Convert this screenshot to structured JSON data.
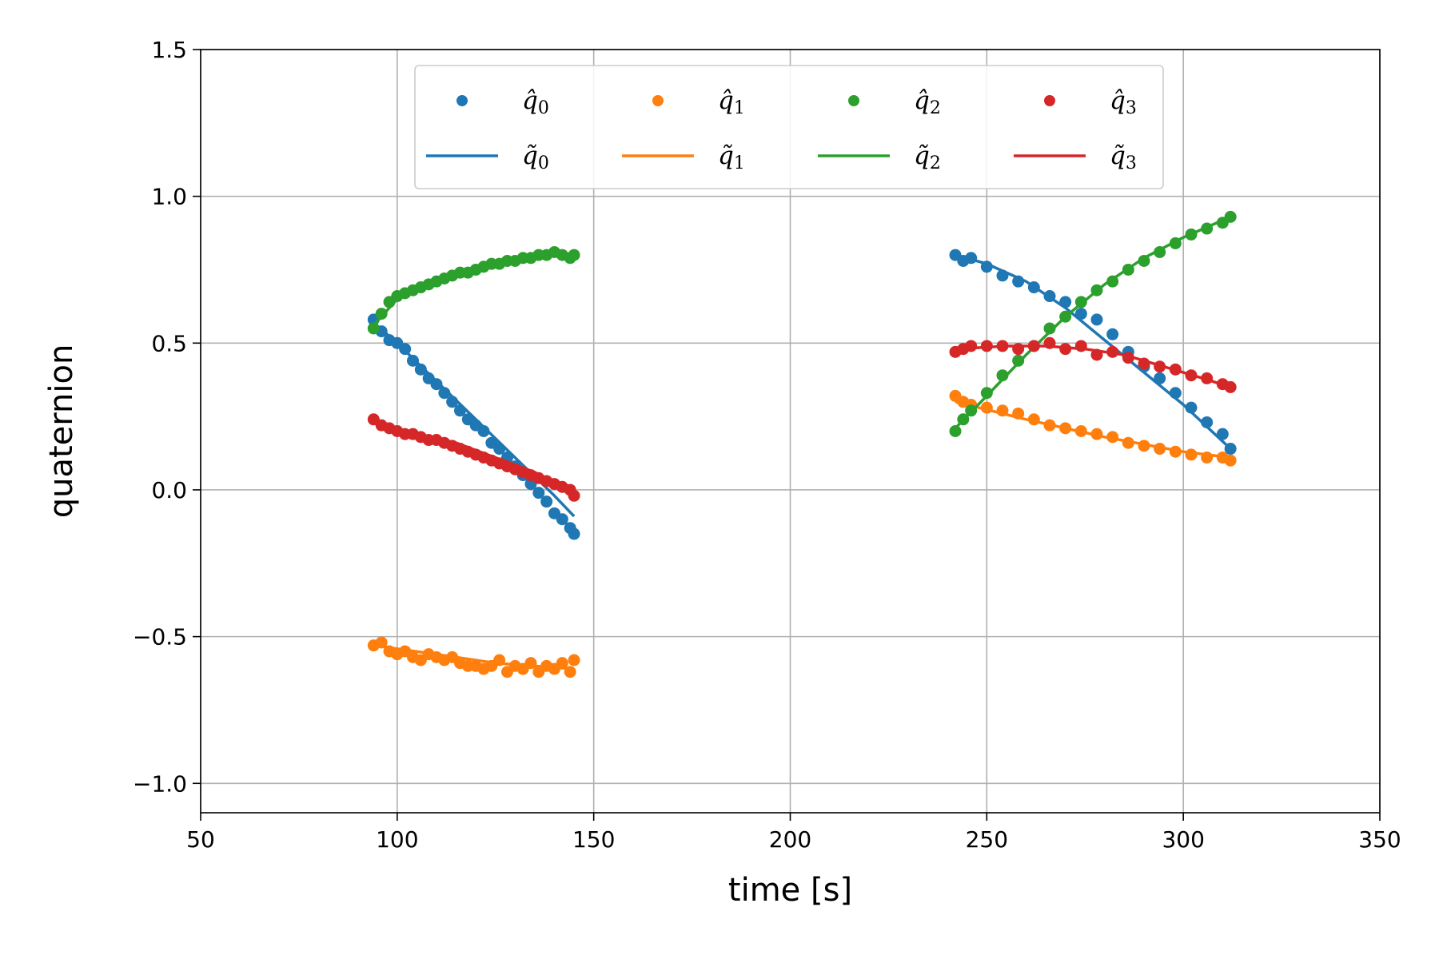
{
  "chart_data": {
    "type": "scatter",
    "title": "",
    "xlabel": "time [s]",
    "ylabel": "quaternion",
    "xlim": [
      50,
      350
    ],
    "ylim": [
      -1.1,
      1.5
    ],
    "xticks": [
      50,
      100,
      150,
      200,
      250,
      300,
      350
    ],
    "yticks": [
      -1.0,
      -0.5,
      0.0,
      0.5,
      1.0,
      1.5
    ],
    "xtick_labels": [
      "50",
      "100",
      "150",
      "200",
      "250",
      "300",
      "350"
    ],
    "ytick_labels": [
      "−1.0",
      "−0.5",
      "0.0",
      "0.5",
      "1.0",
      "1.5"
    ],
    "grid": true,
    "legend_position": "top-center",
    "legend_columns": 4,
    "series": [
      {
        "name": "q0",
        "color": "#1f77b4",
        "marker_label": "q̂",
        "line_label": "q̃",
        "subscript": "0",
        "measured": {
          "x": [
            94,
            96,
            98,
            100,
            102,
            104,
            106,
            108,
            110,
            112,
            114,
            116,
            118,
            120,
            122,
            124,
            126,
            128,
            130,
            132,
            134,
            136,
            138,
            140,
            142,
            144,
            145,
            242,
            244,
            246,
            250,
            254,
            258,
            262,
            266,
            270,
            274,
            278,
            282,
            286,
            290,
            294,
            298,
            302,
            306,
            310,
            312
          ],
          "y": [
            0.58,
            0.54,
            0.51,
            0.5,
            0.48,
            0.44,
            0.41,
            0.38,
            0.36,
            0.33,
            0.3,
            0.27,
            0.24,
            0.22,
            0.2,
            0.16,
            0.14,
            0.11,
            0.08,
            0.05,
            0.02,
            -0.01,
            -0.04,
            -0.08,
            -0.1,
            -0.13,
            -0.15,
            0.8,
            0.78,
            0.79,
            0.76,
            0.73,
            0.71,
            0.69,
            0.66,
            0.64,
            0.6,
            0.58,
            0.53,
            0.47,
            0.42,
            0.38,
            0.33,
            0.28,
            0.23,
            0.19,
            0.14
          ]
        },
        "fit": {
          "x": [
            94,
            100,
            110,
            120,
            130,
            140,
            145,
            242,
            250,
            260,
            270,
            280,
            290,
            300,
            312
          ],
          "y": [
            0.57,
            0.5,
            0.37,
            0.24,
            0.11,
            -0.02,
            -0.09,
            0.8,
            0.77,
            0.71,
            0.62,
            0.51,
            0.4,
            0.29,
            0.14
          ]
        }
      },
      {
        "name": "q1",
        "color": "#ff7f0e",
        "marker_label": "q̂",
        "line_label": "q̃",
        "subscript": "1",
        "measured": {
          "x": [
            94,
            96,
            98,
            100,
            102,
            104,
            106,
            108,
            110,
            112,
            114,
            116,
            118,
            120,
            122,
            124,
            126,
            128,
            130,
            132,
            134,
            136,
            138,
            140,
            142,
            144,
            145,
            242,
            244,
            246,
            250,
            254,
            258,
            262,
            266,
            270,
            274,
            278,
            282,
            286,
            290,
            294,
            298,
            302,
            306,
            310,
            312
          ],
          "y": [
            -0.53,
            -0.52,
            -0.55,
            -0.56,
            -0.55,
            -0.57,
            -0.58,
            -0.56,
            -0.57,
            -0.58,
            -0.57,
            -0.59,
            -0.6,
            -0.6,
            -0.61,
            -0.6,
            -0.58,
            -0.62,
            -0.6,
            -0.61,
            -0.59,
            -0.62,
            -0.6,
            -0.61,
            -0.59,
            -0.62,
            -0.58,
            0.32,
            0.3,
            0.29,
            0.28,
            0.27,
            0.26,
            0.24,
            0.22,
            0.21,
            0.2,
            0.19,
            0.18,
            0.16,
            0.15,
            0.14,
            0.13,
            0.12,
            0.11,
            0.11,
            0.1
          ]
        },
        "fit": {
          "x": [
            94,
            110,
            125,
            145,
            242,
            260,
            280,
            300,
            312
          ],
          "y": [
            -0.53,
            -0.56,
            -0.59,
            -0.61,
            0.3,
            0.24,
            0.18,
            0.13,
            0.11
          ]
        }
      },
      {
        "name": "q2",
        "color": "#2ca02c",
        "marker_label": "q̂",
        "line_label": "q̃",
        "subscript": "2",
        "measured": {
          "x": [
            94,
            96,
            98,
            100,
            102,
            104,
            106,
            108,
            110,
            112,
            114,
            116,
            118,
            120,
            122,
            124,
            126,
            128,
            130,
            132,
            134,
            136,
            138,
            140,
            142,
            144,
            145,
            242,
            244,
            246,
            250,
            254,
            258,
            262,
            266,
            270,
            274,
            278,
            282,
            286,
            290,
            294,
            298,
            302,
            306,
            310,
            312
          ],
          "y": [
            0.55,
            0.6,
            0.64,
            0.66,
            0.67,
            0.68,
            0.69,
            0.7,
            0.71,
            0.72,
            0.73,
            0.74,
            0.74,
            0.75,
            0.76,
            0.77,
            0.77,
            0.78,
            0.78,
            0.79,
            0.79,
            0.8,
            0.8,
            0.81,
            0.8,
            0.79,
            0.8,
            0.2,
            0.24,
            0.27,
            0.33,
            0.39,
            0.44,
            0.49,
            0.55,
            0.59,
            0.64,
            0.68,
            0.71,
            0.75,
            0.78,
            0.81,
            0.84,
            0.87,
            0.89,
            0.91,
            0.93
          ]
        },
        "fit": {
          "x": [
            94,
            100,
            110,
            120,
            130,
            140,
            145,
            242,
            250,
            260,
            270,
            280,
            290,
            300,
            312
          ],
          "y": [
            0.56,
            0.65,
            0.71,
            0.75,
            0.78,
            0.8,
            0.8,
            0.21,
            0.32,
            0.46,
            0.59,
            0.7,
            0.79,
            0.86,
            0.93
          ]
        }
      },
      {
        "name": "q3",
        "color": "#d62728",
        "marker_label": "q̂",
        "line_label": "q̃",
        "subscript": "3",
        "measured": {
          "x": [
            94,
            96,
            98,
            100,
            102,
            104,
            106,
            108,
            110,
            112,
            114,
            116,
            118,
            120,
            122,
            124,
            126,
            128,
            130,
            132,
            134,
            136,
            138,
            140,
            142,
            144,
            145,
            242,
            244,
            246,
            250,
            254,
            258,
            262,
            266,
            270,
            274,
            278,
            282,
            286,
            290,
            294,
            298,
            302,
            306,
            310,
            312
          ],
          "y": [
            0.24,
            0.22,
            0.21,
            0.2,
            0.19,
            0.19,
            0.18,
            0.17,
            0.17,
            0.16,
            0.15,
            0.14,
            0.13,
            0.12,
            0.11,
            0.1,
            0.09,
            0.08,
            0.07,
            0.06,
            0.05,
            0.04,
            0.03,
            0.02,
            0.01,
            0.0,
            -0.02,
            0.47,
            0.48,
            0.49,
            0.49,
            0.49,
            0.48,
            0.49,
            0.5,
            0.48,
            0.49,
            0.46,
            0.47,
            0.45,
            0.43,
            0.42,
            0.41,
            0.39,
            0.38,
            0.36,
            0.35
          ]
        },
        "fit": {
          "x": [
            94,
            105,
            115,
            125,
            135,
            145,
            242,
            255,
            265,
            275,
            285,
            295,
            305,
            312
          ],
          "y": [
            0.23,
            0.19,
            0.16,
            0.11,
            0.06,
            -0.01,
            0.48,
            0.49,
            0.49,
            0.48,
            0.46,
            0.42,
            0.38,
            0.35
          ]
        }
      }
    ]
  }
}
